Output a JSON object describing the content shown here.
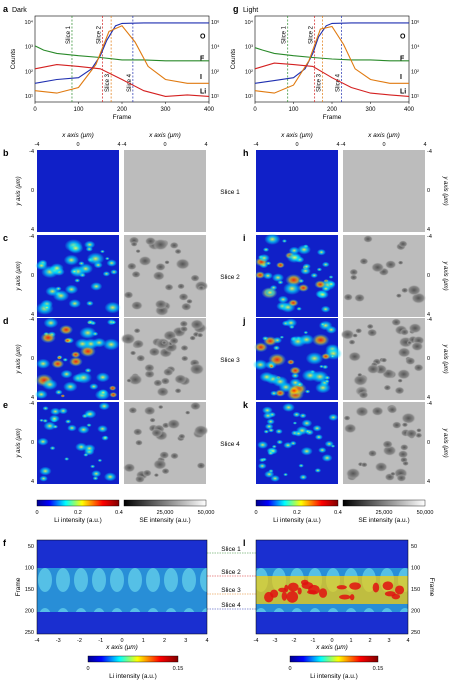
{
  "panels": {
    "a": {
      "letter": "a",
      "title": "Dark"
    },
    "g": {
      "letter": "g",
      "title": "Light"
    },
    "b": "b",
    "c": "c",
    "d": "d",
    "e": "e",
    "f": "f",
    "h": "h",
    "i": "i",
    "j": "j",
    "k": "k",
    "l": "l"
  },
  "profile_axes": {
    "xlabel": "Frame",
    "ylabel": "Counts",
    "x_ticks": [
      "0",
      "100",
      "200",
      "300",
      "400"
    ],
    "left_ticks": [
      "10⁴",
      "10³",
      "10²",
      "10¹"
    ],
    "right_ticks": [
      "10⁶",
      "10⁴",
      "10²",
      "10¹"
    ],
    "slice_labels": [
      "Slice 1",
      "Slice 2",
      "Slice 3",
      "Slice 4"
    ]
  },
  "chart_data": [
    {
      "type": "line",
      "panel": "a",
      "title": "Dark",
      "xlabel": "Frame",
      "ylabel": "Counts",
      "xlim": [
        0,
        400
      ],
      "yscale": "log",
      "slices_frame": [
        85,
        155,
        175,
        225
      ],
      "series": [
        {
          "name": "O",
          "color": "#1f2fb0",
          "x": [
            0,
            50,
            100,
            130,
            150,
            165,
            185,
            200,
            250,
            300,
            350,
            400
          ],
          "y": [
            0.05,
            0.08,
            0.1,
            0.3,
            1.5,
            10,
            60,
            80,
            85,
            85,
            85,
            85
          ]
        },
        {
          "name": "F",
          "color": "#2a8a2a",
          "x": [
            0,
            20,
            50,
            100,
            150,
            200,
            250,
            300,
            350,
            400
          ],
          "y": [
            5,
            3,
            2,
            1.5,
            1.2,
            0.9,
            0.9,
            0.8,
            0.8,
            0.8
          ]
        },
        {
          "name": "I",
          "color": "#e07a10",
          "x": [
            0,
            50,
            100,
            140,
            170,
            200,
            230,
            260,
            300,
            350,
            400
          ],
          "y": [
            0.02,
            0.015,
            0.03,
            0.5,
            30,
            60,
            8,
            0.4,
            0.08,
            0.05,
            0.05
          ]
        },
        {
          "name": "Li",
          "color": "#d42020",
          "x": [
            0,
            50,
            100,
            150,
            200,
            250,
            300,
            350,
            400
          ],
          "y": [
            0.3,
            0.5,
            0.4,
            0.3,
            0.08,
            0.02,
            0.01,
            0.012,
            0.01
          ]
        }
      ]
    },
    {
      "type": "line",
      "panel": "g",
      "title": "Light",
      "xlabel": "Frame",
      "ylabel": "Counts",
      "xlim": [
        0,
        400
      ],
      "yscale": "log",
      "slices_frame": [
        85,
        155,
        175,
        225
      ],
      "series": [
        {
          "name": "O",
          "color": "#1f2fb0",
          "x": [
            0,
            50,
            100,
            130,
            150,
            165,
            185,
            200,
            250,
            300,
            350,
            400
          ],
          "y": [
            0.05,
            0.07,
            0.1,
            0.3,
            2,
            15,
            60,
            80,
            85,
            85,
            85,
            85
          ]
        },
        {
          "name": "F",
          "color": "#2a8a2a",
          "x": [
            0,
            20,
            50,
            100,
            150,
            200,
            250,
            300,
            350,
            400
          ],
          "y": [
            4,
            3,
            2,
            1.5,
            1.2,
            1,
            0.9,
            0.9,
            0.8,
            0.8
          ]
        },
        {
          "name": "I",
          "color": "#e07a10",
          "x": [
            0,
            50,
            100,
            140,
            170,
            200,
            230,
            260,
            300,
            350,
            400
          ],
          "y": [
            0.02,
            0.015,
            0.04,
            0.8,
            40,
            55,
            6,
            0.3,
            0.08,
            0.05,
            0.05
          ]
        },
        {
          "name": "Li",
          "color": "#d42020",
          "x": [
            0,
            50,
            100,
            150,
            200,
            250,
            300,
            350,
            400
          ],
          "y": [
            0.3,
            0.6,
            0.5,
            0.4,
            0.1,
            0.03,
            0.015,
            0.012,
            0.01
          ]
        }
      ]
    }
  ],
  "map_axes": {
    "x_axis_label": "x axis (μm)",
    "y_axis_label": "y axis (μm)",
    "x_ticks": [
      "-4",
      "0",
      "4"
    ],
    "y_ticks": [
      "-4",
      "0",
      "4"
    ]
  },
  "slice_names": [
    "Slice 1",
    "Slice 2",
    "Slice 3",
    "Slice 4"
  ],
  "colorbars": {
    "li": {
      "label": "Li intensity (a.u.)",
      "ticks": [
        "0",
        "0.2",
        "0.4"
      ]
    },
    "se": {
      "label": "SE intensity (a.u.)",
      "ticks": [
        "25,000",
        "50,000"
      ]
    },
    "li2": {
      "label": "Li intensity (a.u.)",
      "ticks": [
        "0",
        "0.15"
      ]
    }
  },
  "depth_axes": {
    "ylabel": "Frame",
    "xlabel": "x axis (μm)",
    "y_ticks": [
      "50",
      "100",
      "150",
      "200",
      "250"
    ],
    "x_ticks": [
      "-4",
      "-3",
      "-2",
      "-1",
      "0",
      "1",
      "2",
      "3",
      "4"
    ]
  }
}
